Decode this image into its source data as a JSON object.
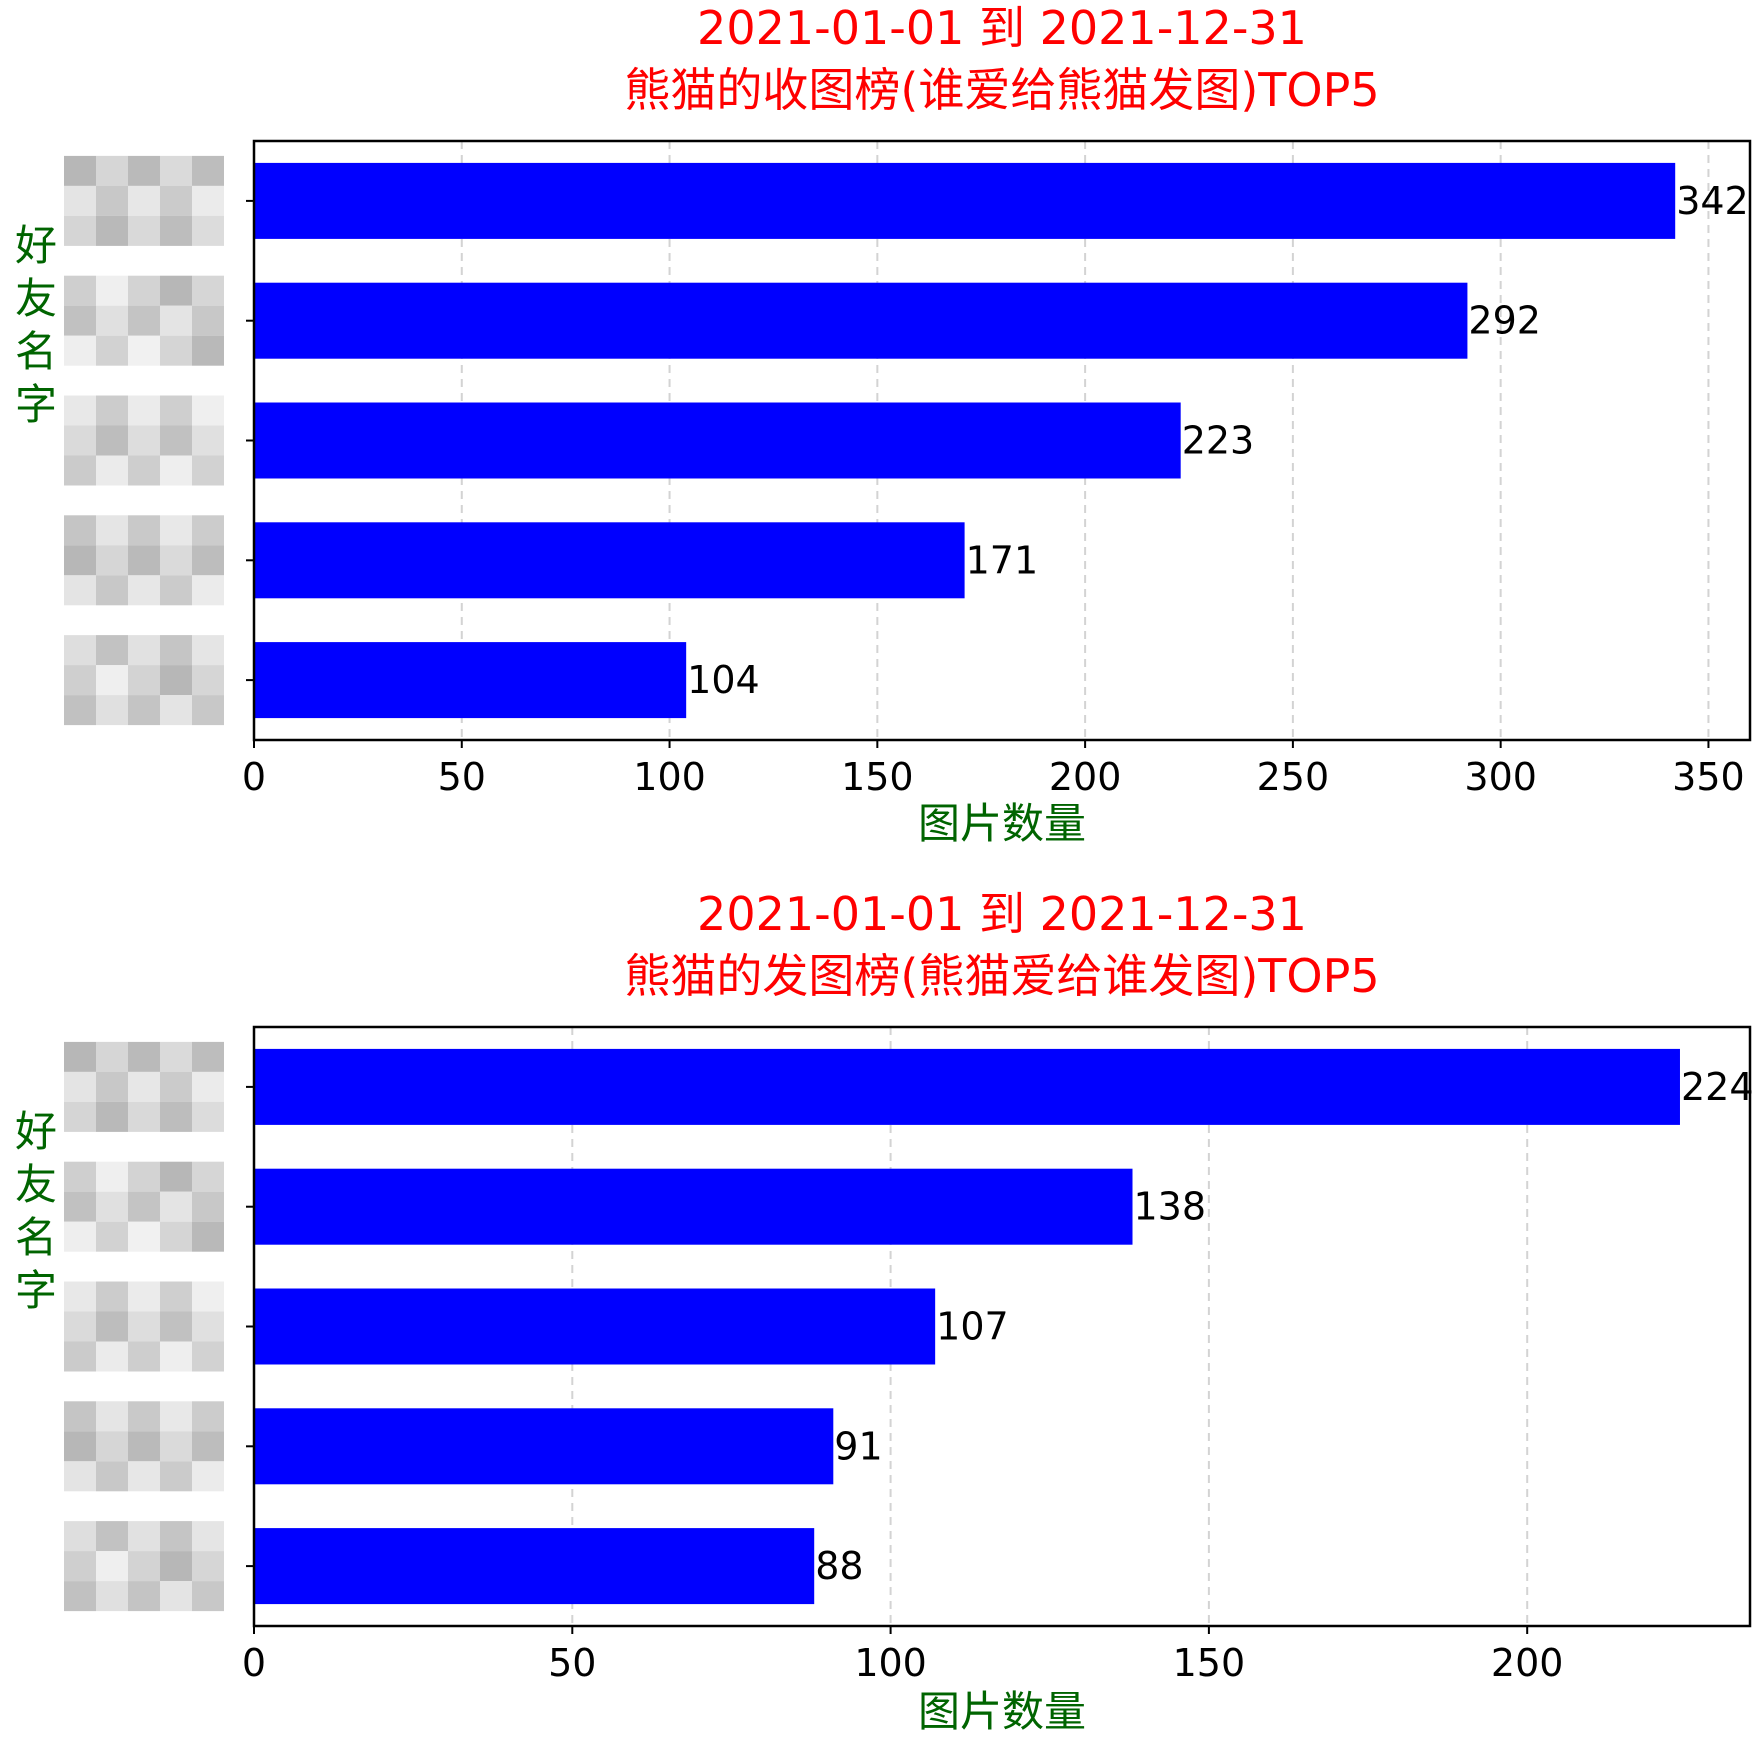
{
  "chart_data": [
    {
      "type": "bar",
      "orientation": "horizontal",
      "title_lines": [
        "2021-01-01 到 2021-12-31",
        "熊猫的收图榜(谁爱给熊猫发图)TOP5"
      ],
      "xlabel": "图片数量",
      "ylabel": "好友名字",
      "categories": [
        "",
        "",
        "",
        "",
        ""
      ],
      "category_labels_obscured": true,
      "values": [
        342,
        292,
        223,
        171,
        104
      ],
      "xlim": [
        0,
        360
      ],
      "xticks": [
        0,
        50,
        100,
        150,
        200,
        250,
        300,
        350
      ],
      "grid": "x, dashed",
      "legend": "none",
      "colors": {
        "bar": "#0000ff",
        "title": "#ff0000",
        "axis_label": "#006400",
        "grid": "#d3d3d3"
      }
    },
    {
      "type": "bar",
      "orientation": "horizontal",
      "title_lines": [
        "2021-01-01 到 2021-12-31",
        "熊猫的发图榜(熊猫爱给谁发图)TOP5"
      ],
      "xlabel": "图片数量",
      "ylabel": "好友名字",
      "categories": [
        "",
        "",
        "",
        "",
        ""
      ],
      "category_labels_obscured": true,
      "values": [
        224,
        138,
        107,
        91,
        88
      ],
      "xlim": [
        0,
        235
      ],
      "xticks": [
        0,
        50,
        100,
        150,
        200
      ],
      "grid": "x, dashed",
      "legend": "none",
      "colors": {
        "bar": "#0000ff",
        "title": "#ff0000",
        "axis_label": "#006400",
        "grid": "#d3d3d3"
      }
    }
  ]
}
